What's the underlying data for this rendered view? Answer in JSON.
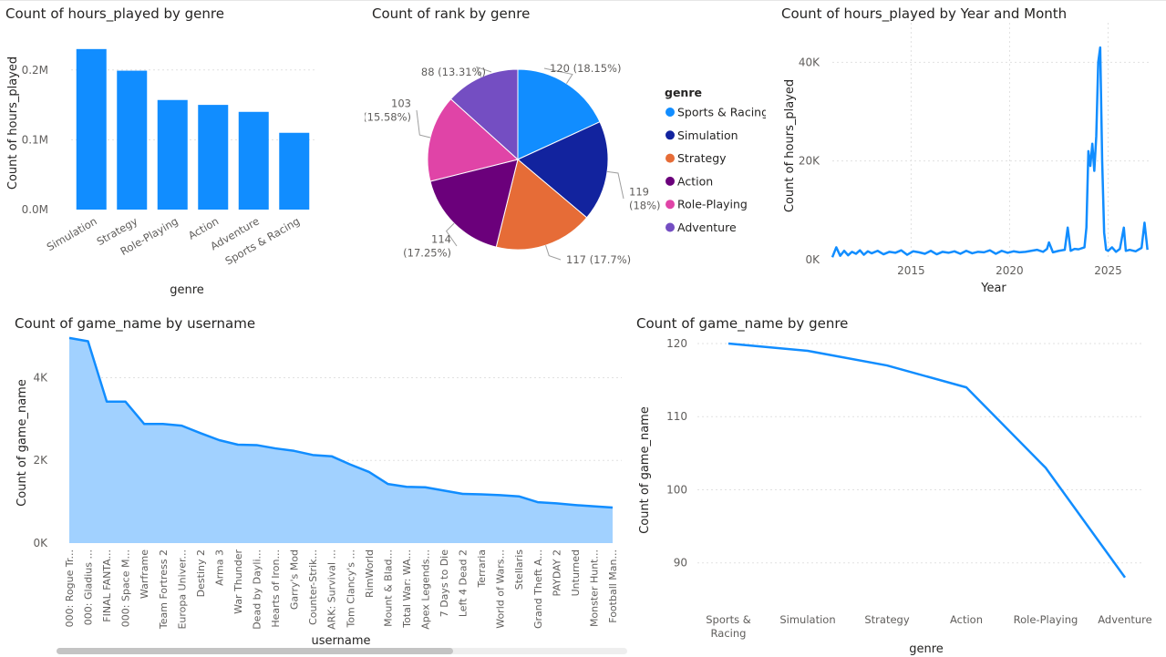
{
  "colors": {
    "primary": "#118DFF",
    "area_fill": "#A1D1FF",
    "text": "#252423",
    "axis_text": "#605E5C",
    "grid": "#E1E1E1"
  },
  "charts": {
    "hours_by_genre": {
      "title": "Count of hours_played by genre",
      "type": "bar",
      "xlabel": "genre",
      "ylabel": "Count of hours_played",
      "ytick_labels": [
        "0.0M",
        "0.1M",
        "0.2M"
      ],
      "ytick_values": [
        0,
        100000,
        200000
      ],
      "ymax": 235000,
      "categories": [
        "Simulation",
        "Strategy",
        "Role-Playing",
        "Action",
        "Adventure",
        "Sports & Racing"
      ],
      "values": [
        230000,
        199000,
        157000,
        150000,
        140000,
        110000
      ]
    },
    "rank_by_genre": {
      "title": "Count of rank by genre",
      "type": "pie",
      "legend_title": "genre",
      "slices": [
        {
          "name": "Sports & Racing",
          "value": 120,
          "label": "120 (18.15%)",
          "color": "#118DFF"
        },
        {
          "name": "Simulation",
          "value": 119,
          "label_lines": [
            "119",
            "(18%)"
          ],
          "color": "#12239E"
        },
        {
          "name": "Strategy",
          "value": 117,
          "label": "117 (17.7%)",
          "color": "#E66C37"
        },
        {
          "name": "Action",
          "value": 114,
          "label_lines": [
            "114",
            "(17.25%)"
          ],
          "color": "#6B007B"
        },
        {
          "name": "Role-Playing",
          "value": 103,
          "label_lines": [
            "103",
            "(15.58%)"
          ],
          "color": "#E044A7"
        },
        {
          "name": "Adventure",
          "value": 88,
          "label": "88 (13.31%)",
          "color": "#744EC2"
        }
      ]
    },
    "hours_by_month": {
      "title": "Count of hours_played by Year and Month",
      "type": "line",
      "xlabel": "Year",
      "ylabel": "Count of hours_played",
      "xtick_labels": [
        "2015",
        "2020",
        "2025"
      ],
      "xtick_values": [
        2015,
        2020,
        2025
      ],
      "ytick_labels": [
        "0K",
        "20K",
        "40K"
      ],
      "ytick_values": [
        0,
        20000,
        40000
      ],
      "xlim": [
        2011,
        2027.2
      ],
      "ylim": [
        0,
        48000
      ],
      "x": [
        2011.0,
        2011.2,
        2011.4,
        2011.6,
        2011.8,
        2012.0,
        2012.2,
        2012.4,
        2012.6,
        2012.8,
        2013.0,
        2013.3,
        2013.6,
        2013.9,
        2014.2,
        2014.5,
        2014.8,
        2015.1,
        2015.4,
        2015.7,
        2016.0,
        2016.3,
        2016.6,
        2016.9,
        2017.2,
        2017.5,
        2017.8,
        2018.1,
        2018.4,
        2018.7,
        2019.0,
        2019.3,
        2019.6,
        2019.9,
        2020.2,
        2020.5,
        2020.8,
        2021.1,
        2021.4,
        2021.7,
        2021.9,
        2022.0,
        2022.2,
        2022.5,
        2022.8,
        2022.95,
        2023.1,
        2023.3,
        2023.5,
        2023.8,
        2023.9,
        2024.0,
        2024.1,
        2024.2,
        2024.3,
        2024.4,
        2024.5,
        2024.6,
        2024.7,
        2024.8,
        2024.9,
        2025.0,
        2025.2,
        2025.4,
        2025.6,
        2025.8,
        2025.9,
        2026.1,
        2026.4,
        2026.7,
        2026.85,
        2027.0
      ],
      "y": [
        500,
        2500,
        800,
        1800,
        900,
        1600,
        1200,
        1900,
        1000,
        1700,
        1300,
        1800,
        1100,
        1600,
        1400,
        1900,
        1000,
        1700,
        1500,
        1200,
        1800,
        1100,
        1600,
        1400,
        1700,
        1200,
        1800,
        1300,
        1600,
        1500,
        1900,
        1200,
        1800,
        1400,
        1700,
        1500,
        1600,
        1800,
        2000,
        1600,
        2200,
        3500,
        1500,
        1800,
        2000,
        6500,
        1800,
        2200,
        2100,
        2500,
        6500,
        22000,
        19000,
        23500,
        18000,
        25000,
        40000,
        43000,
        20000,
        5500,
        2000,
        1800,
        2500,
        1600,
        2200,
        6500,
        1800,
        2000,
        1700,
        2400,
        7500,
        2000
      ]
    },
    "games_by_username": {
      "title": "Count of game_name by username",
      "type": "area",
      "xlabel": "username",
      "ylabel": "Count of game_name",
      "ytick_labels": [
        "0K",
        "2K",
        "4K"
      ],
      "ytick_values": [
        0,
        2000,
        4000
      ],
      "ymax": 5200,
      "categories": [
        "000: Rogue Tr...",
        "000: Gladius ...",
        "FINAL FANTA...",
        "000: Space M...",
        "Warframe",
        "Team Fortress 2",
        "Europa Univer...",
        "Destiny 2",
        "Arma 3",
        "War Thunder",
        "Dead by Dayli...",
        "Hearts of Iron...",
        "Garry's Mod",
        "Counter-Strik...",
        "ARK: Survival ...",
        "Tom Clancy's ...",
        "RimWorld",
        "Mount & Blad...",
        "Total War: WA...",
        "Apex Legends...",
        "7 Days to Die",
        "Left 4 Dead 2",
        "Terraria",
        "World of Wars...",
        "Stellaris",
        "Grand Theft A...",
        "PAYDAY 2",
        "Unturned",
        "Monster Hunt...",
        "Football Man..."
      ],
      "values": [
        4960,
        4880,
        3420,
        3420,
        2880,
        2880,
        2840,
        2660,
        2490,
        2380,
        2370,
        2290,
        2230,
        2130,
        2100,
        1900,
        1720,
        1430,
        1360,
        1350,
        1270,
        1190,
        1180,
        1160,
        1130,
        990,
        960,
        920,
        890,
        860
      ]
    },
    "games_by_genre": {
      "title": "Count of game_name by genre",
      "type": "line",
      "xlabel": "genre",
      "ylabel": "Count of game_name",
      "ytick_labels": [
        "90",
        "100",
        "110",
        "120"
      ],
      "ytick_values": [
        90,
        100,
        110,
        120
      ],
      "ylim": [
        85.6,
        120
      ],
      "categories": [
        [
          "Sports &",
          "Racing"
        ],
        [
          "Simulation"
        ],
        [
          "Strategy"
        ],
        [
          "Action"
        ],
        [
          "Role-Playing"
        ],
        [
          "Adventure"
        ]
      ],
      "values": [
        120,
        119,
        117,
        114,
        103,
        88
      ]
    }
  }
}
